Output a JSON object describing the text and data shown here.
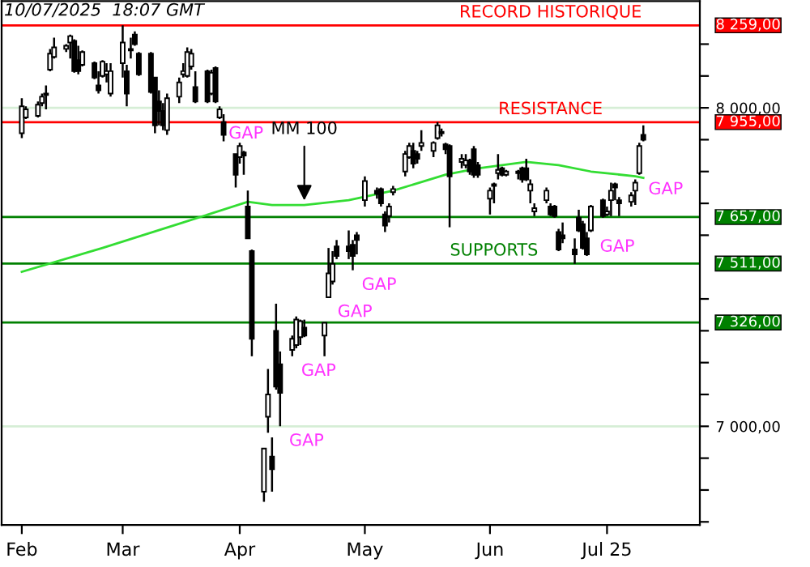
{
  "chart_data": {
    "type": "candlestick",
    "annotations": [
      "10/07/2025  18:07 GMT",
      {
        "text": "RECORD HISTORIQUE",
        "x": "2025-06-17",
        "y": 8259
      },
      {
        "text": "RESISTANCE",
        "x": "2025-06-17",
        "y": 7955
      },
      {
        "text": "SUPPORTS",
        "x": "2025-06-03",
        "y": 7511
      },
      {
        "text": "GAP",
        "x": "2025-03-27",
        "y": 7965
      },
      {
        "text": "GAP",
        "x": "2025-04-29",
        "y": 7490
      },
      {
        "text": "GAP",
        "x": "2025-04-23",
        "y": 7405
      },
      {
        "text": "GAP",
        "x": "2025-04-14",
        "y": 7220
      },
      {
        "text": "GAP",
        "x": "2025-04-11",
        "y": 7000
      },
      {
        "text": "GAP",
        "x": "2025-07-09",
        "y": 7790
      },
      {
        "text": "GAP",
        "x": "2025-06-27",
        "y": 7610
      }
    ],
    "x": [
      "2025-02-06",
      "2025-02-07",
      "2025-02-10",
      "2025-02-11",
      "2025-02-12",
      "2025-02-13",
      "2025-02-14",
      "2025-02-17",
      "2025-02-18",
      "2025-02-19",
      "2025-02-20",
      "2025-02-21",
      "2025-02-24",
      "2025-02-25",
      "2025-02-26",
      "2025-02-27",
      "2025-02-28",
      "2025-03-03",
      "2025-03-04",
      "2025-03-05",
      "2025-03-06",
      "2025-03-07",
      "2025-03-10",
      "2025-03-11",
      "2025-03-12",
      "2025-03-13",
      "2025-03-14",
      "2025-03-17",
      "2025-03-18",
      "2025-03-19",
      "2025-03-20",
      "2025-03-21",
      "2025-03-24",
      "2025-03-25",
      "2025-03-26",
      "2025-03-27",
      "2025-03-28",
      "2025-03-31",
      "2025-04-01",
      "2025-04-02",
      "2025-04-03",
      "2025-04-04",
      "2025-04-07",
      "2025-04-08",
      "2025-04-09",
      "2025-04-10",
      "2025-04-11",
      "2025-04-14",
      "2025-04-15",
      "2025-04-16",
      "2025-04-17",
      "2025-04-22",
      "2025-04-23",
      "2025-04-24",
      "2025-04-25",
      "2025-04-28",
      "2025-04-29",
      "2025-04-30",
      "2025-05-02",
      "2025-05-05",
      "2025-05-06",
      "2025-05-07",
      "2025-05-08",
      "2025-05-09",
      "2025-05-12",
      "2025-05-13",
      "2025-05-14",
      "2025-05-15",
      "2025-05-16",
      "2025-05-19",
      "2025-05-20",
      "2025-05-21",
      "2025-05-22",
      "2025-05-23",
      "2025-05-26",
      "2025-05-27",
      "2025-05-28",
      "2025-05-29",
      "2025-05-30",
      "2025-06-02",
      "2025-06-03",
      "2025-06-04",
      "2025-06-05",
      "2025-06-06",
      "2025-06-09",
      "2025-06-10",
      "2025-06-11",
      "2025-06-12",
      "2025-06-13",
      "2025-06-16",
      "2025-06-17",
      "2025-06-18",
      "2025-06-19",
      "2025-06-20",
      "2025-06-23",
      "2025-06-24",
      "2025-06-25",
      "2025-06-26",
      "2025-06-27",
      "2025-06-30",
      "2025-07-01",
      "2025-07-02",
      "2025-07-03",
      "2025-07-04",
      "2025-07-07",
      "2025-07-08",
      "2025-07-09",
      "2025-07-10"
    ],
    "ohlc": [
      [
        7920,
        8030,
        7905,
        8005
      ],
      [
        7970,
        8005,
        7965,
        7995
      ],
      [
        7975,
        8020,
        7970,
        8010
      ],
      [
        8015,
        8045,
        8005,
        8035
      ],
      [
        8040,
        8070,
        7995,
        8045
      ],
      [
        8120,
        8185,
        8115,
        8170
      ],
      [
        8160,
        8220,
        8155,
        8190
      ],
      [
        8185,
        8200,
        8175,
        8195
      ],
      [
        8205,
        8230,
        8155,
        8225
      ],
      [
        8210,
        8215,
        8110,
        8115
      ],
      [
        8150,
        8195,
        8105,
        8115
      ],
      [
        8135,
        8180,
        8130,
        8175
      ],
      [
        8140,
        8145,
        8090,
        8095
      ],
      [
        8070,
        8115,
        8045,
        8055
      ],
      [
        8100,
        8150,
        8095,
        8145
      ],
      [
        8105,
        8140,
        8080,
        8115
      ],
      [
        8045,
        8140,
        8035,
        8115
      ],
      [
        8140,
        8259,
        8095,
        8205
      ],
      [
        8115,
        8135,
        8005,
        8045
      ],
      [
        8180,
        8220,
        8155,
        8185
      ],
      [
        8230,
        8240,
        8195,
        8200
      ],
      [
        8170,
        8175,
        8100,
        8105
      ],
      [
        8170,
        8175,
        8045,
        8050
      ],
      [
        8095,
        8095,
        7920,
        7945
      ],
      [
        8020,
        8055,
        7945,
        7990
      ],
      [
        7990,
        8015,
        7930,
        7945
      ],
      [
        7930,
        8045,
        7915,
        8030
      ],
      [
        8035,
        8095,
        8015,
        8080
      ],
      [
        8105,
        8140,
        8095,
        8115
      ],
      [
        8100,
        8190,
        8095,
        8175
      ],
      [
        8130,
        8185,
        8120,
        8170
      ],
      [
        8065,
        8115,
        8015,
        8020
      ],
      [
        8115,
        8120,
        8015,
        8020
      ],
      [
        8045,
        8120,
        8040,
        8110
      ],
      [
        8125,
        8130,
        8015,
        8020
      ],
      [
        7970,
        8005,
        7965,
        7995
      ],
      [
        7955,
        7980,
        7895,
        7915
      ],
      [
        7855,
        7855,
        7750,
        7790
      ],
      [
        7845,
        7890,
        7825,
        7880
      ],
      [
        7860,
        7865,
        7790,
        7850
      ],
      [
        7690,
        7740,
        7590,
        7590
      ],
      [
        7550,
        7555,
        7220,
        7275
      ],
      [
        6795,
        6930,
        6763,
        6930
      ],
      [
        7030,
        7180,
        6980,
        7100
      ],
      [
        6905,
        6965,
        6795,
        6865
      ],
      [
        7300,
        7385,
        7115,
        7125
      ],
      [
        7195,
        7235,
        7000,
        7105
      ],
      [
        7240,
        7285,
        7220,
        7275
      ],
      [
        7255,
        7345,
        7245,
        7335
      ],
      [
        7280,
        7335,
        7255,
        7330
      ],
      [
        7310,
        7335,
        7280,
        7285
      ],
      [
        7285,
        7325,
        7220,
        7325
      ],
      [
        7405,
        7560,
        7405,
        7480
      ],
      [
        7455,
        7550,
        7445,
        7510
      ],
      [
        7565,
        7585,
        7525,
        7535
      ],
      [
        7565,
        7615,
        7525,
        7550
      ],
      [
        7570,
        7585,
        7490,
        7535
      ],
      [
        7600,
        7610,
        7540,
        7585
      ],
      [
        7710,
        7785,
        7690,
        7770
      ],
      [
        7740,
        7750,
        7715,
        7730
      ],
      [
        7745,
        7750,
        7690,
        7700
      ],
      [
        7665,
        7675,
        7610,
        7630
      ],
      [
        7660,
        7700,
        7640,
        7690
      ],
      [
        7735,
        7755,
        7725,
        7745
      ],
      [
        7800,
        7865,
        7785,
        7855
      ],
      [
        7845,
        7890,
        7840,
        7880
      ],
      [
        7865,
        7890,
        7810,
        7825
      ],
      [
        7855,
        7865,
        7825,
        7840
      ],
      [
        7880,
        7930,
        7865,
        7890
      ],
      [
        7865,
        7895,
        7845,
        7890
      ],
      [
        7905,
        7955,
        7900,
        7945
      ],
      [
        7920,
        7935,
        7910,
        7925
      ],
      [
        7885,
        7890,
        7855,
        7870
      ],
      [
        7880,
        7885,
        7625,
        7785
      ],
      [
        7830,
        7855,
        7810,
        7840
      ],
      [
        7820,
        7855,
        7810,
        7835
      ],
      [
        7835,
        7840,
        7790,
        7800
      ],
      [
        7870,
        7880,
        7780,
        7790
      ],
      [
        7820,
        7830,
        7780,
        7790
      ],
      [
        7715,
        7750,
        7665,
        7740
      ],
      [
        7755,
        7765,
        7700,
        7760
      ],
      [
        7795,
        7855,
        7775,
        7805
      ],
      [
        7810,
        7815,
        7785,
        7790
      ],
      [
        7790,
        7805,
        7785,
        7800
      ],
      [
        7800,
        7805,
        7775,
        7795
      ],
      [
        7810,
        7815,
        7765,
        7775
      ],
      [
        7810,
        7840,
        7770,
        7775
      ],
      [
        7740,
        7775,
        7700,
        7760
      ],
      [
        7675,
        7700,
        7660,
        7685
      ],
      [
        7710,
        7750,
        7700,
        7740
      ],
      [
        7690,
        7700,
        7660,
        7665
      ],
      [
        7690,
        7695,
        7655,
        7660
      ],
      [
        7610,
        7620,
        7550,
        7555
      ],
      [
        7600,
        7640,
        7575,
        7590
      ],
      [
        7555,
        7590,
        7510,
        7540
      ],
      [
        7655,
        7680,
        7610,
        7615
      ],
      [
        7635,
        7645,
        7555,
        7560
      ],
      [
        7590,
        7610,
        7535,
        7540
      ],
      [
        7615,
        7695,
        7610,
        7690
      ],
      [
        7710,
        7715,
        7655,
        7660
      ],
      [
        7665,
        7690,
        7660,
        7675
      ],
      [
        7710,
        7765,
        7660,
        7740
      ],
      [
        7760,
        7765,
        7710,
        7750
      ],
      [
        7710,
        7720,
        7660,
        7700
      ],
      [
        7705,
        7735,
        7690,
        7725
      ],
      [
        7740,
        7775,
        7695,
        7765
      ],
      [
        7795,
        7890,
        7790,
        7880
      ],
      [
        7915,
        7945,
        7895,
        7900
      ]
    ],
    "series": [
      {
        "type": "line",
        "name": "MM 100",
        "color": "#33dd33",
        "x": [
          "2025-02-06",
          "2025-02-26",
          "2025-03-18",
          "2025-04-03",
          "2025-04-09",
          "2025-04-17",
          "2025-04-28",
          "2025-05-09",
          "2025-05-22",
          "2025-05-30",
          "2025-06-11",
          "2025-06-19",
          "2025-06-27",
          "2025-07-08",
          "2025-07-10"
        ],
        "values": [
          7485,
          7560,
          7640,
          7705,
          7695,
          7695,
          7710,
          7740,
          7790,
          7810,
          7830,
          7820,
          7800,
          7785,
          7780
        ]
      }
    ],
    "ref_lines": [
      {
        "axis": "y",
        "value": 8259,
        "label": "8 259,00",
        "color": "#ff0000"
      },
      {
        "axis": "y",
        "value": 7955,
        "label": "7 955,00",
        "color": "#ff0000"
      },
      {
        "axis": "y",
        "value": 7657,
        "label": "7 657,00",
        "color": "#008000"
      },
      {
        "axis": "y",
        "value": 7511,
        "label": "7 511,00",
        "color": "#008000"
      },
      {
        "axis": "y",
        "value": 7326,
        "label": "7 326,00",
        "color": "#008000"
      }
    ],
    "xlim": [
      "2025-02-01",
      "2025-07-24"
    ],
    "xticks": [
      {
        "value": "2025-02-06",
        "label": "Feb"
      },
      {
        "value": "2025-03-03",
        "label": "Mar"
      },
      {
        "value": "2025-04-01",
        "label": "Apr"
      },
      {
        "value": "2025-05-02",
        "label": "May"
      },
      {
        "value": "2025-06-02",
        "label": "Jun"
      },
      {
        "value": "2025-07-01",
        "label": "Jul 25"
      }
    ],
    "ylim": [
      6690,
      8335
    ],
    "yticks": [
      {
        "value": 6700,
        "label": null
      },
      {
        "value": 6800,
        "label": null
      },
      {
        "value": 6900,
        "label": null
      },
      {
        "value": 7000,
        "label": "7 000,00"
      },
      {
        "value": 7100,
        "label": null
      },
      {
        "value": 7200,
        "label": null
      },
      {
        "value": 7300,
        "label": null
      },
      {
        "value": 7400,
        "label": null
      },
      {
        "value": 7600,
        "label": null
      },
      {
        "value": 7700,
        "label": null
      },
      {
        "value": 7800,
        "label": null
      },
      {
        "value": 7900,
        "label": null
      },
      {
        "value": 8000,
        "label": "8 000,00"
      },
      {
        "value": 8100,
        "label": null
      },
      {
        "value": 8200,
        "label": null
      }
    ],
    "grid": "y"
  }
}
